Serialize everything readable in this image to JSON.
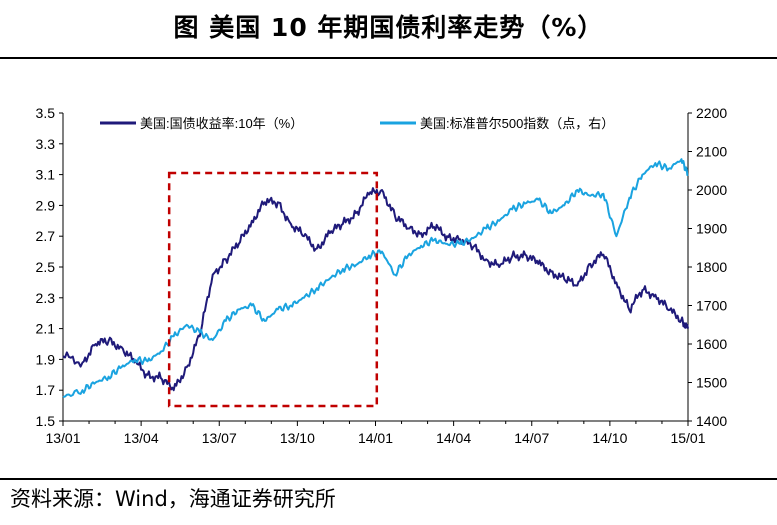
{
  "header": {
    "title": "图  美国 10 年期国债利率走势（%）"
  },
  "footer": {
    "source": "资料来源：Wind，海通证券研究所"
  },
  "chart_data": {
    "type": "line",
    "x_tick_labels": [
      "13/01",
      "13/04",
      "13/07",
      "13/10",
      "14/01",
      "14/04",
      "14/07",
      "14/10",
      "15/01"
    ],
    "y_left_ticks": [
      "3.5",
      "3.3",
      "3.1",
      "2.9",
      "2.7",
      "2.5",
      "2.3",
      "2.1",
      "1.9",
      "1.7",
      "1.5"
    ],
    "y_right_ticks": [
      "2200",
      "2100",
      "2000",
      "1900",
      "1800",
      "1700",
      "1600",
      "1500",
      "1400"
    ],
    "y_left_range": [
      1.5,
      3.5
    ],
    "y_right_range": [
      1400,
      2200
    ],
    "x_range_months": [
      0,
      24
    ],
    "legend_position": "top",
    "highlight_box": {
      "from": "2013-05",
      "to": "2014-01",
      "style": "dashed",
      "color": "#c00000"
    },
    "series": [
      {
        "name": "美国:国债收益率:10年（%）",
        "axis": "left",
        "color": "#1f1a7a",
        "x": [
          "2013-01",
          "2013-01",
          "2013-02",
          "2013-02",
          "2013-03",
          "2013-03",
          "2013-04",
          "2013-04",
          "2013-05",
          "2013-05",
          "2013-06",
          "2013-06",
          "2013-07",
          "2013-07",
          "2013-08",
          "2013-08",
          "2013-09",
          "2013-09",
          "2013-10",
          "2013-10",
          "2013-11",
          "2013-11",
          "2013-12",
          "2013-12",
          "2014-01",
          "2014-01",
          "2014-02",
          "2014-02",
          "2014-03",
          "2014-03",
          "2014-04",
          "2014-04",
          "2014-05",
          "2014-05",
          "2014-06",
          "2014-06",
          "2014-07",
          "2014-07",
          "2014-08",
          "2014-08",
          "2014-09",
          "2014-09",
          "2014-10",
          "2014-10",
          "2014-11",
          "2014-11",
          "2014-12",
          "2014-12",
          "2015-01"
        ],
        "y": [
          1.92,
          1.88,
          2.0,
          2.02,
          1.98,
          1.88,
          1.8,
          1.78,
          1.7,
          1.85,
          2.05,
          2.45,
          2.55,
          2.65,
          2.8,
          2.92,
          2.92,
          2.78,
          2.7,
          2.62,
          2.72,
          2.78,
          2.85,
          2.97,
          3.0,
          2.83,
          2.75,
          2.72,
          2.76,
          2.7,
          2.68,
          2.63,
          2.55,
          2.5,
          2.57,
          2.58,
          2.52,
          2.47,
          2.42,
          2.38,
          2.52,
          2.58,
          2.4,
          2.22,
          2.35,
          2.32,
          2.22,
          2.16,
          2.1
        ]
      },
      {
        "name": "美国:标准普尔500指数（点，右）",
        "axis": "right",
        "color": "#1aa3e0",
        "x": [
          "2013-01",
          "2013-01",
          "2013-02",
          "2013-02",
          "2013-03",
          "2013-03",
          "2013-04",
          "2013-04",
          "2013-05",
          "2013-05",
          "2013-06",
          "2013-06",
          "2013-07",
          "2013-07",
          "2013-08",
          "2013-08",
          "2013-09",
          "2013-09",
          "2013-10",
          "2013-10",
          "2013-11",
          "2013-11",
          "2013-12",
          "2013-12",
          "2014-01",
          "2014-01",
          "2014-02",
          "2014-02",
          "2014-03",
          "2014-03",
          "2014-04",
          "2014-04",
          "2014-05",
          "2014-05",
          "2014-06",
          "2014-06",
          "2014-07",
          "2014-07",
          "2014-08",
          "2014-08",
          "2014-09",
          "2014-09",
          "2014-10",
          "2014-10",
          "2014-11",
          "2014-11",
          "2014-12",
          "2014-12",
          "2015-01"
        ],
        "y": [
          1462,
          1480,
          1500,
          1515,
          1540,
          1560,
          1555,
          1580,
          1620,
          1650,
          1630,
          1610,
          1660,
          1690,
          1700,
          1660,
          1690,
          1700,
          1720,
          1745,
          1770,
          1795,
          1805,
          1830,
          1840,
          1780,
          1830,
          1855,
          1870,
          1860,
          1860,
          1875,
          1900,
          1920,
          1950,
          1965,
          1975,
          1940,
          1960,
          2000,
          1985,
          1990,
          1880,
          1980,
          2040,
          2070,
          2055,
          2080,
          2040
        ]
      }
    ]
  }
}
